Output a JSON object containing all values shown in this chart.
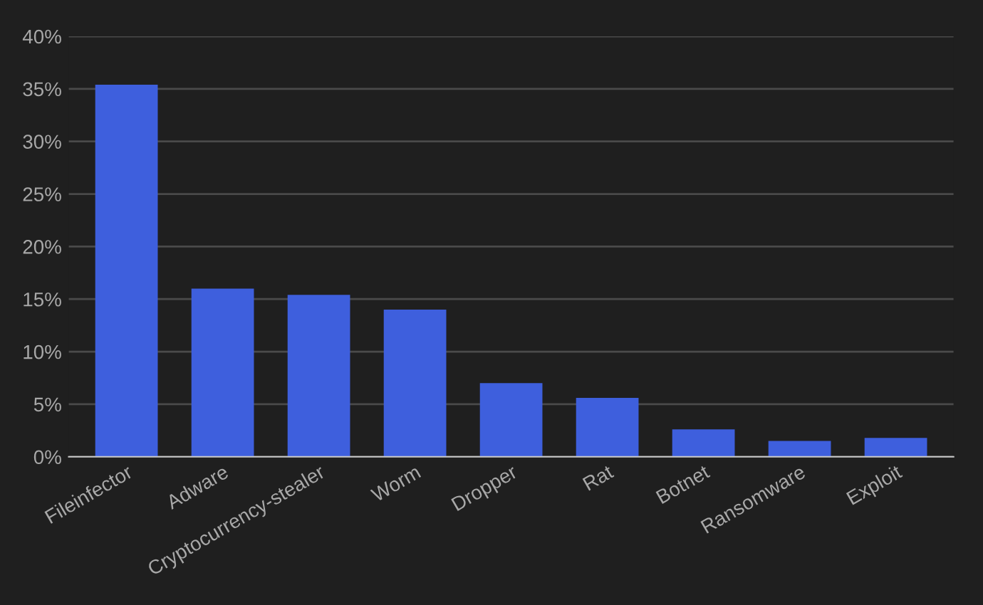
{
  "chart_data": {
    "type": "bar",
    "categories": [
      "Fileinfector",
      "Adware",
      "Cryptocurrency-stealer",
      "Worm",
      "Dropper",
      "Rat",
      "Botnet",
      "Ransomware",
      "Exploit"
    ],
    "values": [
      35.4,
      16.0,
      15.4,
      14.0,
      7.0,
      5.6,
      2.6,
      1.5,
      1.8
    ],
    "color": "#3e5fdd",
    "ylim": [
      0,
      40
    ],
    "yticks": [
      {
        "value": 0,
        "label": "0%"
      },
      {
        "value": 5,
        "label": "5%"
      },
      {
        "value": 10,
        "label": "10%"
      },
      {
        "value": 15,
        "label": "15%"
      },
      {
        "value": 20,
        "label": "20%"
      },
      {
        "value": 25,
        "label": "25%"
      },
      {
        "value": 30,
        "label": "30%"
      },
      {
        "value": 35,
        "label": "35%"
      },
      {
        "value": 40,
        "label": "40%"
      }
    ],
    "grid": "y"
  }
}
